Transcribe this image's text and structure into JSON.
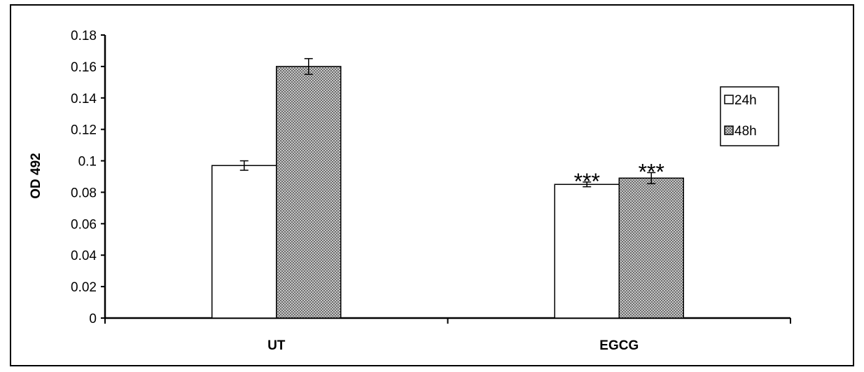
{
  "chart_data": {
    "type": "bar",
    "categories": [
      "UT",
      "EGCG"
    ],
    "series": [
      {
        "name": "24h",
        "values": [
          0.097,
          0.085
        ],
        "errors": [
          0.003,
          0.0015
        ],
        "color": "#ffffff"
      },
      {
        "name": "48h",
        "values": [
          0.16,
          0.089
        ],
        "errors": [
          0.005,
          0.0035
        ],
        "color": "#9a9a9a"
      }
    ],
    "title": "",
    "xlabel": "",
    "ylabel": "OD 492",
    "ylim": [
      0,
      0.18
    ],
    "yticks": [
      "0",
      "0.02",
      "0.04",
      "0.06",
      "0.08",
      "0.1",
      "0.12",
      "0.14",
      "0.16",
      "0.18"
    ],
    "annotations": [
      {
        "category": "EGCG",
        "series": "24h",
        "text": "***"
      },
      {
        "category": "EGCG",
        "series": "48h",
        "text": "***"
      }
    ],
    "legend_position": "top-right",
    "grid": false
  }
}
